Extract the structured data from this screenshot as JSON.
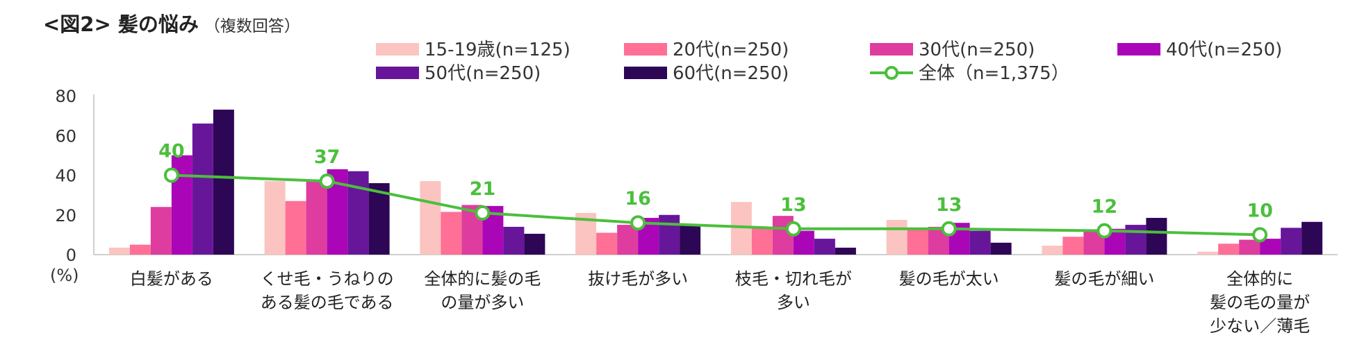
{
  "title": "<図2> 髪の悩み",
  "subtitle": "（複数回答）",
  "chart_data": {
    "type": "bar",
    "ylabel": "(%)",
    "ylim": [
      0,
      80
    ],
    "yticks": [
      "0",
      "20",
      "40",
      "60",
      "80"
    ],
    "categories": [
      [
        "白髪がある"
      ],
      [
        "くせ毛・うねりの",
        "ある髪の毛である"
      ],
      [
        "全体的に髪の毛",
        "の量が多い"
      ],
      [
        "抜け毛が多い"
      ],
      [
        "枝毛・切れ毛が",
        "多い"
      ],
      [
        "髪の毛が太い"
      ],
      [
        "髪の毛が細い"
      ],
      [
        "全体的に",
        "髪の毛の量が",
        "少ない／薄毛"
      ]
    ],
    "series": [
      {
        "name": "15-19歳(n=125)",
        "color": "#fbc4c1",
        "values": [
          3.5,
          37,
          37,
          21,
          26.5,
          17.5,
          4.5,
          1.5
        ]
      },
      {
        "name": "20代(n=250)",
        "color": "#ff6f96",
        "values": [
          5,
          27,
          21.5,
          11,
          13.5,
          13,
          9,
          5.5
        ]
      },
      {
        "name": "30代(n=250)",
        "color": "#de3c9f",
        "values": [
          24,
          37,
          25,
          15,
          19.5,
          14,
          12,
          7.5
        ]
      },
      {
        "name": "40代(n=250)",
        "color": "#aa06b8",
        "values": [
          50,
          43,
          24.5,
          18.5,
          12,
          16,
          13,
          8
        ]
      },
      {
        "name": "50代(n=250)",
        "color": "#67169a",
        "values": [
          66,
          42,
          14,
          20,
          8,
          12,
          15,
          13.5
        ]
      },
      {
        "name": "60代(n=250)",
        "color": "#2e0656",
        "values": [
          73,
          36,
          10.5,
          15,
          3.5,
          6,
          18.5,
          16.5
        ]
      }
    ],
    "line_series": {
      "name": "全体（n=1,375）",
      "color": "#4bbf3c",
      "values": [
        40,
        37,
        21,
        16,
        13,
        13,
        12,
        10
      ],
      "labels": [
        "40",
        "37",
        "21",
        "16",
        "13",
        "13",
        "12",
        "10"
      ]
    }
  }
}
